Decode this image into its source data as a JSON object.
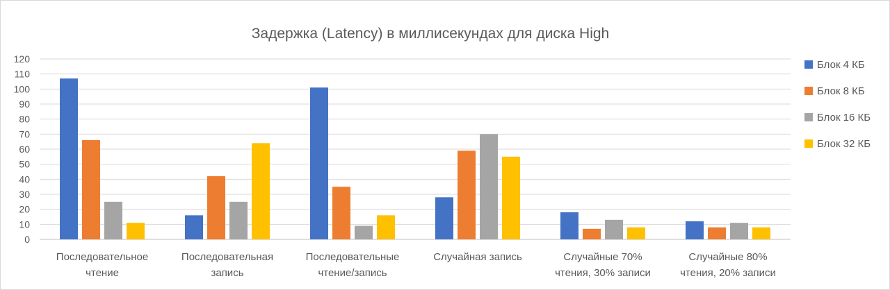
{
  "chart_data": {
    "type": "bar",
    "title": "Задержка (Latency) в миллисекундах для диска High",
    "xlabel": "",
    "ylabel": "",
    "ylim": [
      0,
      120
    ],
    "ytick_step": 10,
    "grid": true,
    "legend_position": "right",
    "categories": [
      [
        "Последовательное",
        "чтение"
      ],
      [
        "Последовательная",
        "запись"
      ],
      [
        "Последовательные",
        "чтение/запись"
      ],
      [
        "Случайная запись"
      ],
      [
        "Случайные 70%",
        "чтения, 30% записи"
      ],
      [
        "Случайные 80%",
        "чтения, 20% записи"
      ]
    ],
    "series": [
      {
        "name": "Блок 4 КБ",
        "color": "#4472c4",
        "values": [
          107,
          16,
          101,
          28,
          18,
          12
        ]
      },
      {
        "name": "Блок 8 КБ",
        "color": "#ed7d31",
        "values": [
          66,
          42,
          35,
          59,
          7,
          8
        ]
      },
      {
        "name": "Блок 16 КБ",
        "color": "#a5a5a5",
        "values": [
          25,
          25,
          9,
          70,
          13,
          11
        ]
      },
      {
        "name": "Блок 32 КБ",
        "color": "#ffc000",
        "values": [
          11,
          64,
          16,
          55,
          8,
          8
        ]
      }
    ]
  }
}
